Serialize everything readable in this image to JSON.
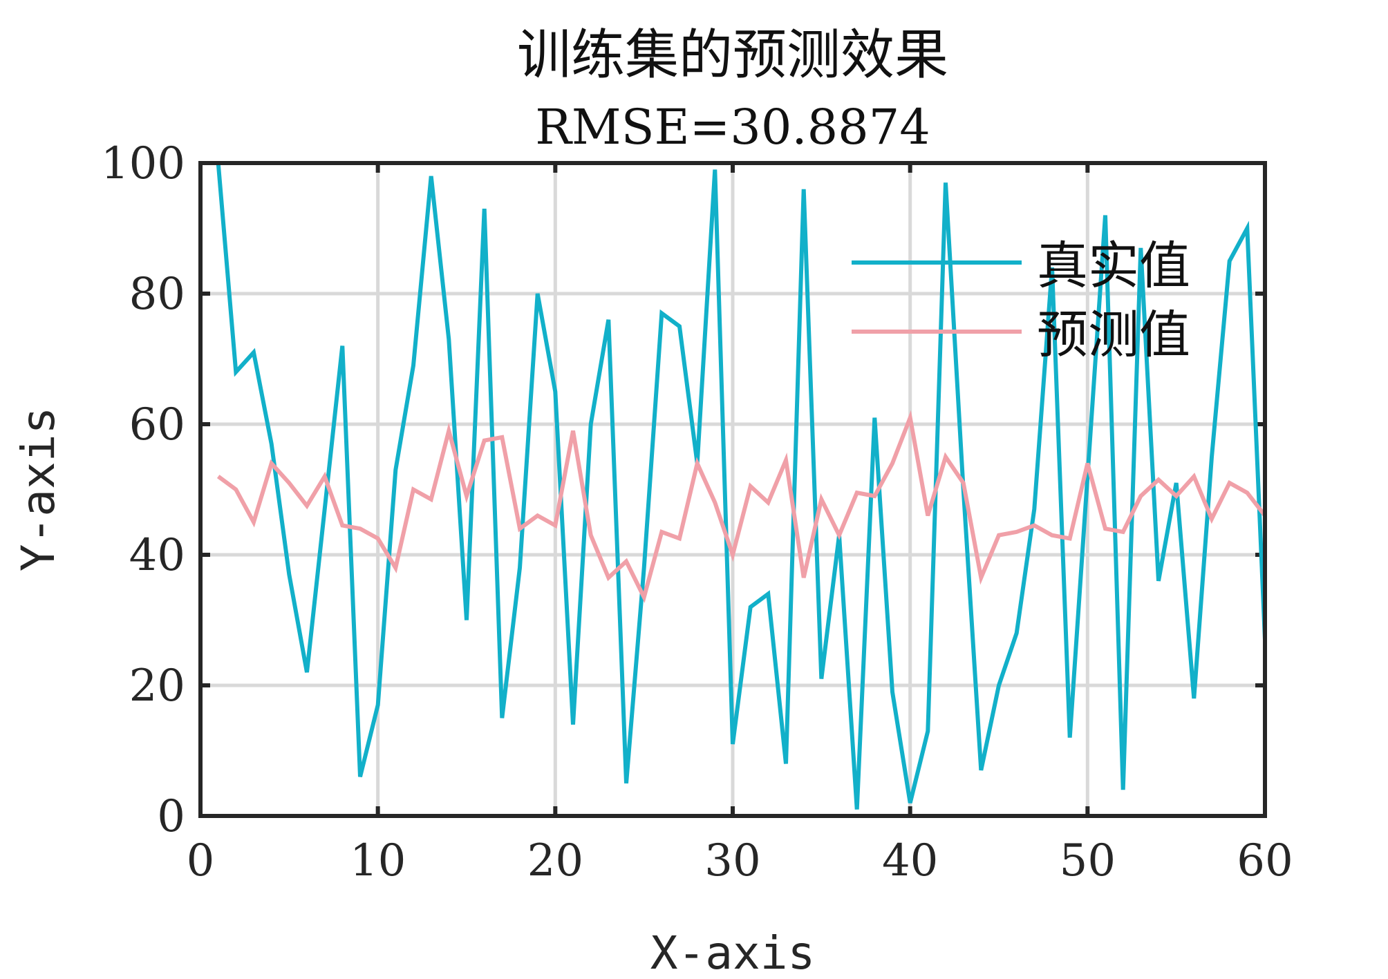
{
  "chart_data": {
    "type": "line",
    "title": "训练集的预测效果",
    "subtitle": "RMSE=30.8874",
    "xlabel": "X-axis",
    "ylabel": "Y-axis",
    "xlim": [
      0,
      60
    ],
    "ylim": [
      0,
      100
    ],
    "xticks": [
      0,
      10,
      20,
      30,
      40,
      50,
      60
    ],
    "yticks": [
      0,
      20,
      40,
      60,
      80,
      100
    ],
    "grid": true,
    "legend_position": "top-right",
    "x": [
      1,
      2,
      3,
      4,
      5,
      6,
      7,
      8,
      9,
      10,
      11,
      12,
      13,
      14,
      15,
      16,
      17,
      18,
      19,
      20,
      21,
      22,
      23,
      24,
      25,
      26,
      27,
      28,
      29,
      30,
      31,
      32,
      33,
      34,
      35,
      36,
      37,
      38,
      39,
      40,
      41,
      42,
      43,
      44,
      45,
      46,
      47,
      48,
      49,
      50,
      51,
      52,
      53,
      54,
      55,
      56,
      57,
      58,
      59,
      60
    ],
    "series": [
      {
        "name": "真实值",
        "color": "#12b0c9",
        "values": [
          100,
          68,
          71,
          57,
          37,
          22,
          47,
          72,
          6,
          17,
          53,
          69,
          98,
          73,
          30,
          93,
          15,
          38,
          80,
          65,
          14,
          60,
          76,
          5,
          38,
          77,
          75,
          54,
          99,
          11,
          32,
          34,
          8,
          96,
          21,
          43,
          1,
          61,
          19,
          2,
          13,
          97,
          50,
          7,
          20,
          28,
          47,
          84,
          12,
          52,
          92,
          4,
          87,
          36,
          51,
          18,
          55,
          85,
          90,
          27
        ]
      },
      {
        "name": "预测值",
        "color": "#f0a0a8",
        "values": [
          52,
          50,
          45,
          54,
          51,
          47.5,
          52,
          44.5,
          44,
          42.5,
          38,
          50,
          48.5,
          59,
          49,
          57.5,
          58,
          44,
          46,
          44.5,
          59,
          43,
          36.5,
          39,
          33.5,
          43.5,
          42.5,
          54,
          48,
          40,
          50.5,
          48,
          54.5,
          36.5,
          48.5,
          43,
          49.5,
          49,
          54,
          61,
          46,
          55,
          51,
          36.5,
          43,
          43.5,
          44.5,
          43,
          42.5,
          54,
          44,
          43.5,
          49,
          51.5,
          49,
          52,
          45.5,
          51,
          49.5,
          46
        ]
      }
    ]
  }
}
